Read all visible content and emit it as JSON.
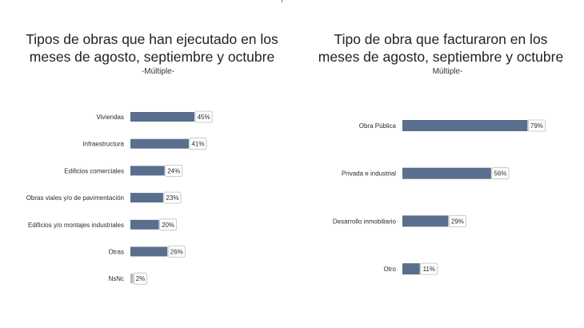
{
  "colors": {
    "bar": "#5a6f8e",
    "bar_nsnc": "#b7b7b7",
    "box_border": "#bdbdbd"
  },
  "chart_data": [
    {
      "type": "bar",
      "orientation": "horizontal",
      "title_line1": "Tipos de obras que han ejecutado en los",
      "title_line2": "meses de agosto, septiembre y octubre",
      "subtitle": "-Múltiple-",
      "categories": [
        "Viviendas",
        "Infraestructura",
        "Edificios comerciales",
        "Obras viales y/o de pavimentación",
        "Edificios y/o montajes industriales",
        "Otras",
        "NsNc"
      ],
      "values": [
        45,
        41,
        24,
        23,
        20,
        26,
        2
      ],
      "value_labels": [
        "45%",
        "41%",
        "24%",
        "23%",
        "20%",
        "26%",
        "2%"
      ],
      "unit": "%",
      "xlim": [
        0,
        100
      ],
      "grid": false,
      "legend": "none"
    },
    {
      "type": "bar",
      "orientation": "horizontal",
      "title_line1": "Tipo de obra que facturaron en los",
      "title_line2": "meses de agosto, septiembre y octubre",
      "subtitle": "Múltiple-",
      "categories": [
        "Obra Pública",
        "Privada e industrial",
        "Desarrollo inmobiliario",
        "Otro"
      ],
      "values": [
        79,
        56,
        29,
        11
      ],
      "value_labels": [
        "79%",
        "56%",
        "29%",
        "11%"
      ],
      "unit": "%",
      "xlim": [
        0,
        100
      ],
      "grid": false,
      "legend": "none"
    }
  ],
  "right_marker": "-"
}
